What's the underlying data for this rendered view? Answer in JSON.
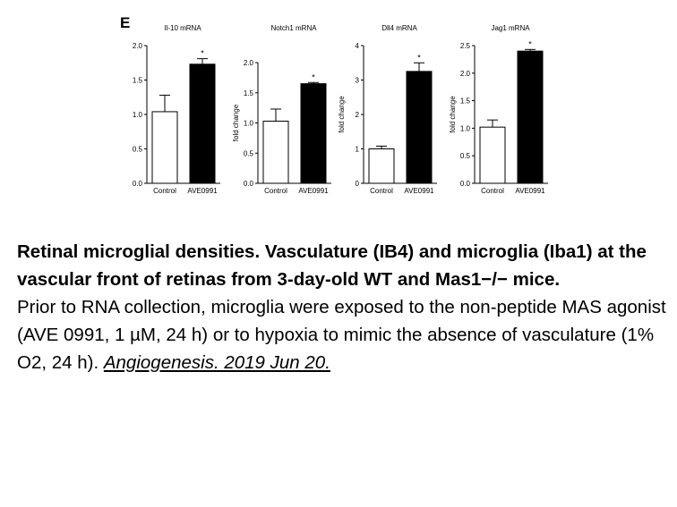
{
  "panel_label": "E",
  "chart_data": [
    {
      "type": "bar",
      "title": "Il-10 mRNA",
      "ylabel": "",
      "categories": [
        "Control",
        "AVE0991"
      ],
      "values": [
        1.04,
        1.73
      ],
      "errors": [
        0.24,
        0.08
      ],
      "significance": [
        "",
        "*"
      ],
      "ylim": [
        0,
        2.0
      ],
      "yticks": [
        0.0,
        0.5,
        1.0,
        1.5,
        2.0
      ],
      "ytick_labels": [
        "0.0",
        "0.5",
        "1.0",
        "1.5",
        "2.0"
      ],
      "bar_colors": [
        "#ffffff",
        "#000000"
      ]
    },
    {
      "type": "bar",
      "title": "Notch1 mRNA",
      "ylabel": "fold change",
      "categories": [
        "Control",
        "AVE0991"
      ],
      "values": [
        1.03,
        1.65
      ],
      "errors": [
        0.2,
        0.02
      ],
      "significance": [
        "",
        "*"
      ],
      "ylim": [
        0,
        2.0
      ],
      "yticks": [
        0.0,
        0.5,
        1.0,
        1.5,
        2.0
      ],
      "ytick_labels": [
        "0.0",
        "0.5",
        "1.0",
        "1.5",
        "2.0"
      ],
      "bar_colors": [
        "#ffffff",
        "#000000"
      ]
    },
    {
      "type": "bar",
      "title": "Dll4 mRNA",
      "ylabel": "fold change",
      "categories": [
        "Control",
        "AVE0991"
      ],
      "values": [
        1.0,
        3.25
      ],
      "errors": [
        0.08,
        0.25
      ],
      "significance": [
        "",
        "*"
      ],
      "ylim": [
        0,
        4
      ],
      "yticks": [
        0,
        1,
        2,
        3,
        4
      ],
      "ytick_labels": [
        "0",
        "1",
        "2",
        "3",
        "4"
      ],
      "bar_colors": [
        "#ffffff",
        "#000000"
      ]
    },
    {
      "type": "bar",
      "title": "Jag1 mRNA",
      "ylabel": "fold change",
      "categories": [
        "Control",
        "AVE0991"
      ],
      "values": [
        1.02,
        2.4
      ],
      "errors": [
        0.13,
        0.03
      ],
      "significance": [
        "",
        "*"
      ],
      "ylim": [
        0,
        2.5
      ],
      "yticks": [
        0.0,
        0.5,
        1.0,
        1.5,
        2.0,
        2.5
      ],
      "ytick_labels": [
        "0.0",
        "0.5",
        "1.0",
        "1.5",
        "2.0",
        "2.5"
      ],
      "bar_colors": [
        "#ffffff",
        "#000000"
      ]
    }
  ],
  "caption": {
    "title": "Retinal microglial densities. Vasculature (IB4) and microglia (Iba1) at the vascular front of retinas from 3-day-old WT and Mas1−/− mice.",
    "body": "Prior to RNA collection, microglia were exposed to the non-peptide MAS agonist (AVE 0991, 1 µM, 24 h) or to hypoxia to mimic the absence of vasculature (1% O2, 24 h). ",
    "citation": "Angiogenesis. 2019 Jun 20. "
  }
}
